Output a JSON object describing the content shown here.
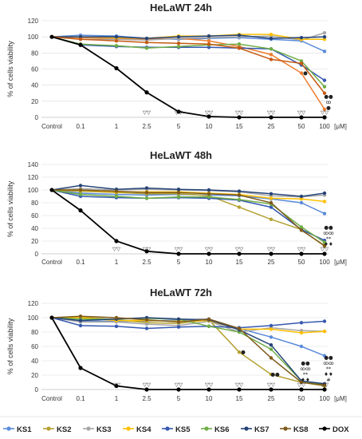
{
  "chart_data": [
    {
      "type": "line",
      "title": "HeLaWT 24h",
      "ylabel": "% of cells viability",
      "unit": "[μM]",
      "ylim": [
        0,
        120
      ],
      "yticks": [
        0,
        20,
        40,
        60,
        80,
        100,
        120
      ],
      "categories": [
        "Control",
        "0.1",
        "1",
        "2.5",
        "5",
        "10",
        "15",
        "25",
        "50",
        "100"
      ],
      "series": [
        {
          "name": "KS1",
          "values": [
            100,
            102,
            101,
            98,
            97,
            98,
            99,
            97,
            95,
            82
          ]
        },
        {
          "name": "KS2",
          "values": [
            100,
            99,
            98,
            97,
            98,
            95,
            88,
            78,
            55,
            10
          ]
        },
        {
          "name": "KS3",
          "values": [
            100,
            97,
            97,
            96,
            98,
            99,
            100,
            101,
            96,
            105
          ]
        },
        {
          "name": "KS4",
          "values": [
            100,
            100,
            99,
            98,
            101,
            101,
            103,
            103,
            97,
            97
          ]
        },
        {
          "name": "KS5",
          "values": [
            100,
            90,
            88,
            87,
            87,
            87,
            86,
            85,
            65,
            46
          ]
        },
        {
          "name": "KS6",
          "values": [
            100,
            91,
            89,
            86,
            88,
            90,
            91,
            85,
            70,
            38
          ]
        },
        {
          "name": "KS7",
          "values": [
            100,
            100,
            100,
            98,
            100,
            101,
            102,
            98,
            99,
            100
          ]
        },
        {
          "name": "KS8",
          "values": [
            100,
            97,
            95,
            93,
            92,
            91,
            86,
            72,
            67,
            30
          ]
        },
        {
          "name": "DOX",
          "values": [
            100,
            90,
            61,
            31,
            7,
            1,
            0,
            0,
            0,
            0
          ]
        }
      ],
      "annotations": [
        {
          "x": "2.5",
          "text": "▽▽"
        },
        {
          "x": "5",
          "text": "▽▽"
        },
        {
          "x": "10",
          "text": "▽▽"
        },
        {
          "x": "15",
          "text": "▽▽"
        },
        {
          "x": "25",
          "text": "▽▽"
        },
        {
          "x": "50",
          "text": "▽▽"
        },
        {
          "x": "100",
          "text": "▽▽"
        },
        {
          "x": "100",
          "text": "●"
        },
        {
          "x": "100",
          "text": "ꝏ"
        },
        {
          "x": "100",
          "text": "●●"
        },
        {
          "x": "50",
          "text": "●"
        }
      ]
    },
    {
      "type": "line",
      "title": "HeLaWT 48h",
      "ylabel": "% of cells viability",
      "unit": "[μM]",
      "ylim": [
        0,
        140
      ],
      "yticks": [
        0,
        20,
        40,
        60,
        80,
        100,
        120,
        140
      ],
      "categories": [
        "Control",
        "0.1",
        "1",
        "2.5",
        "5",
        "10",
        "15",
        "25",
        "50",
        "100"
      ],
      "series": [
        {
          "name": "KS1",
          "values": [
            100,
            95,
            93,
            92,
            93,
            92,
            91,
            86,
            80,
            63
          ]
        },
        {
          "name": "KS2",
          "values": [
            100,
            98,
            96,
            94,
            94,
            91,
            73,
            54,
            38,
            12
          ]
        },
        {
          "name": "KS3",
          "values": [
            100,
            102,
            100,
            101,
            100,
            99,
            97,
            91,
            89,
            92
          ]
        },
        {
          "name": "KS4",
          "values": [
            100,
            100,
            97,
            97,
            97,
            95,
            93,
            87,
            86,
            82
          ]
        },
        {
          "name": "KS5",
          "values": [
            100,
            90,
            88,
            87,
            88,
            87,
            84,
            73,
            38,
            21
          ]
        },
        {
          "name": "KS6",
          "values": [
            100,
            93,
            90,
            87,
            89,
            89,
            85,
            78,
            42,
            18
          ]
        },
        {
          "name": "KS7",
          "values": [
            100,
            107,
            101,
            103,
            101,
            100,
            98,
            94,
            90,
            95
          ]
        },
        {
          "name": "KS8",
          "values": [
            100,
            100,
            98,
            96,
            96,
            94,
            92,
            80,
            37,
            13
          ]
        },
        {
          "name": "DOX",
          "values": [
            100,
            68,
            20,
            4,
            0,
            0,
            0,
            0,
            0,
            0
          ]
        }
      ],
      "annotations": [
        {
          "x": "1",
          "text": "▽▽"
        },
        {
          "x": "2.5",
          "text": "▽▽"
        },
        {
          "x": "5",
          "text": "▽▽"
        },
        {
          "x": "10",
          "text": "▽▽"
        },
        {
          "x": "15",
          "text": "▽▽"
        },
        {
          "x": "25",
          "text": "▽▽"
        },
        {
          "x": "50",
          "text": "▽▽"
        },
        {
          "x": "100",
          "text": "▽▽"
        },
        {
          "x": "100",
          "text": "♦♦"
        },
        {
          "x": "100",
          "text": "**"
        },
        {
          "x": "100",
          "text": "ꝏꝏ"
        },
        {
          "x": "100",
          "text": "●●"
        }
      ]
    },
    {
      "type": "line",
      "title": "HeLaWT 72h",
      "ylabel": "% of cells viability",
      "unit": "[μM]",
      "ylim": [
        0,
        120
      ],
      "yticks": [
        0,
        20,
        40,
        60,
        80,
        100,
        120
      ],
      "categories": [
        "Control",
        "0.1",
        "1",
        "2.5",
        "5",
        "10",
        "15",
        "25",
        "50",
        "100"
      ],
      "series": [
        {
          "name": "KS1",
          "values": [
            100,
            95,
            95,
            95,
            97,
            98,
            85,
            73,
            60,
            47
          ]
        },
        {
          "name": "KS2",
          "values": [
            100,
            101,
            97,
            93,
            92,
            97,
            52,
            21,
            10,
            5
          ]
        },
        {
          "name": "KS3",
          "values": [
            100,
            94,
            94,
            91,
            89,
            95,
            80,
            86,
            82,
            81
          ]
        },
        {
          "name": "KS4",
          "values": [
            100,
            100,
            96,
            96,
            95,
            96,
            84,
            84,
            79,
            81
          ]
        },
        {
          "name": "KS5",
          "values": [
            100,
            89,
            88,
            85,
            87,
            88,
            86,
            89,
            93,
            95
          ]
        },
        {
          "name": "KS6",
          "values": [
            100,
            98,
            98,
            99,
            98,
            88,
            80,
            56,
            12,
            7
          ]
        },
        {
          "name": "KS7",
          "values": [
            100,
            96,
            98,
            100,
            98,
            97,
            83,
            62,
            12,
            8
          ]
        },
        {
          "name": "KS8",
          "values": [
            100,
            102,
            100,
            97,
            94,
            98,
            85,
            44,
            10,
            6
          ]
        },
        {
          "name": "DOX",
          "values": [
            100,
            30,
            5,
            0,
            0,
            0,
            0,
            0,
            0,
            0
          ]
        }
      ],
      "annotations": [
        {
          "x": "1",
          "text": "▽▽"
        },
        {
          "x": "2.5",
          "text": "▽▽"
        },
        {
          "x": "5",
          "text": "▽▽"
        },
        {
          "x": "10",
          "text": "▽▽"
        },
        {
          "x": "15",
          "text": "▽▽"
        },
        {
          "x": "25",
          "text": "▽▽"
        },
        {
          "x": "50",
          "text": "▽▽"
        },
        {
          "x": "100",
          "text": "▽▽"
        },
        {
          "x": "100",
          "text": "#"
        },
        {
          "x": "15",
          "text": "●"
        },
        {
          "x": "25",
          "text": "●●"
        },
        {
          "x": "50",
          "text": "♦♦"
        },
        {
          "x": "50",
          "text": "**"
        },
        {
          "x": "50",
          "text": "ꝏꝏ"
        },
        {
          "x": "50",
          "text": "●●"
        },
        {
          "x": "100",
          "text": "♦♦"
        },
        {
          "x": "100",
          "text": "**"
        },
        {
          "x": "100",
          "text": "ꝏꝏ"
        },
        {
          "x": "100",
          "text": "●●"
        }
      ]
    }
  ],
  "legend": [
    {
      "name": "KS1",
      "color": "#5b8bd9"
    },
    {
      "name": "KS2",
      "color": "#b5a132"
    },
    {
      "name": "KS3",
      "color": "#a6a6a6"
    },
    {
      "name": "KS4",
      "color": "#ffc000"
    },
    {
      "name": "KS5",
      "color": "#3558b0"
    },
    {
      "name": "KS6",
      "color": "#70ad47"
    },
    {
      "name": "KS7",
      "color": "#264478"
    },
    {
      "name": "KS8",
      "color": "#7f5a1a"
    },
    {
      "name": "DOX",
      "color": "#000000"
    }
  ],
  "colors_24h_override": {
    "KS2": "#ed7d31",
    "KS8": "#c55a11"
  }
}
